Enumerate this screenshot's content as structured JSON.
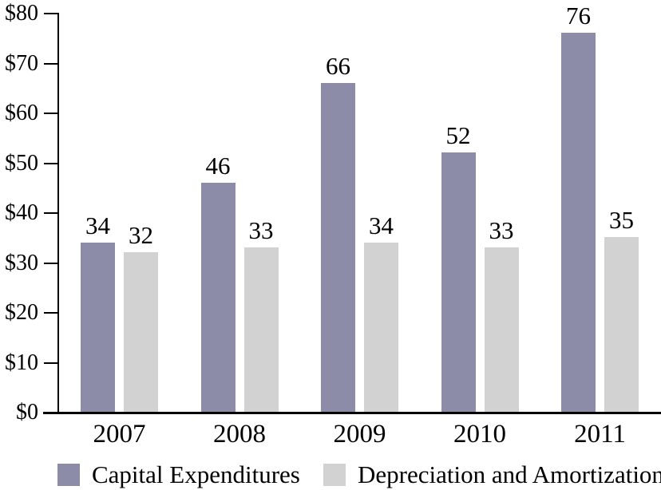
{
  "chart_data": {
    "type": "bar",
    "title": "",
    "categories": [
      "2007",
      "2008",
      "2009",
      "2010",
      "2011"
    ],
    "series": [
      {
        "name": "Capital Expenditures",
        "color": "#8C8CA8",
        "values": [
          34,
          46,
          66,
          52,
          76
        ]
      },
      {
        "name": "Depreciation and Amortization",
        "color": "#D2D2D2",
        "values": [
          32,
          33,
          34,
          33,
          35
        ]
      }
    ],
    "ylim": [
      0,
      80
    ],
    "ytick_step": 10,
    "ytick_labels": [
      "$0",
      "$10",
      "$20",
      "$30",
      "$40",
      "$50",
      "$60",
      "$70",
      "$80"
    ],
    "value_labels": true,
    "grid": false,
    "legend_position": "bottom",
    "axis_color": "#000000",
    "text_color": "#000000"
  }
}
